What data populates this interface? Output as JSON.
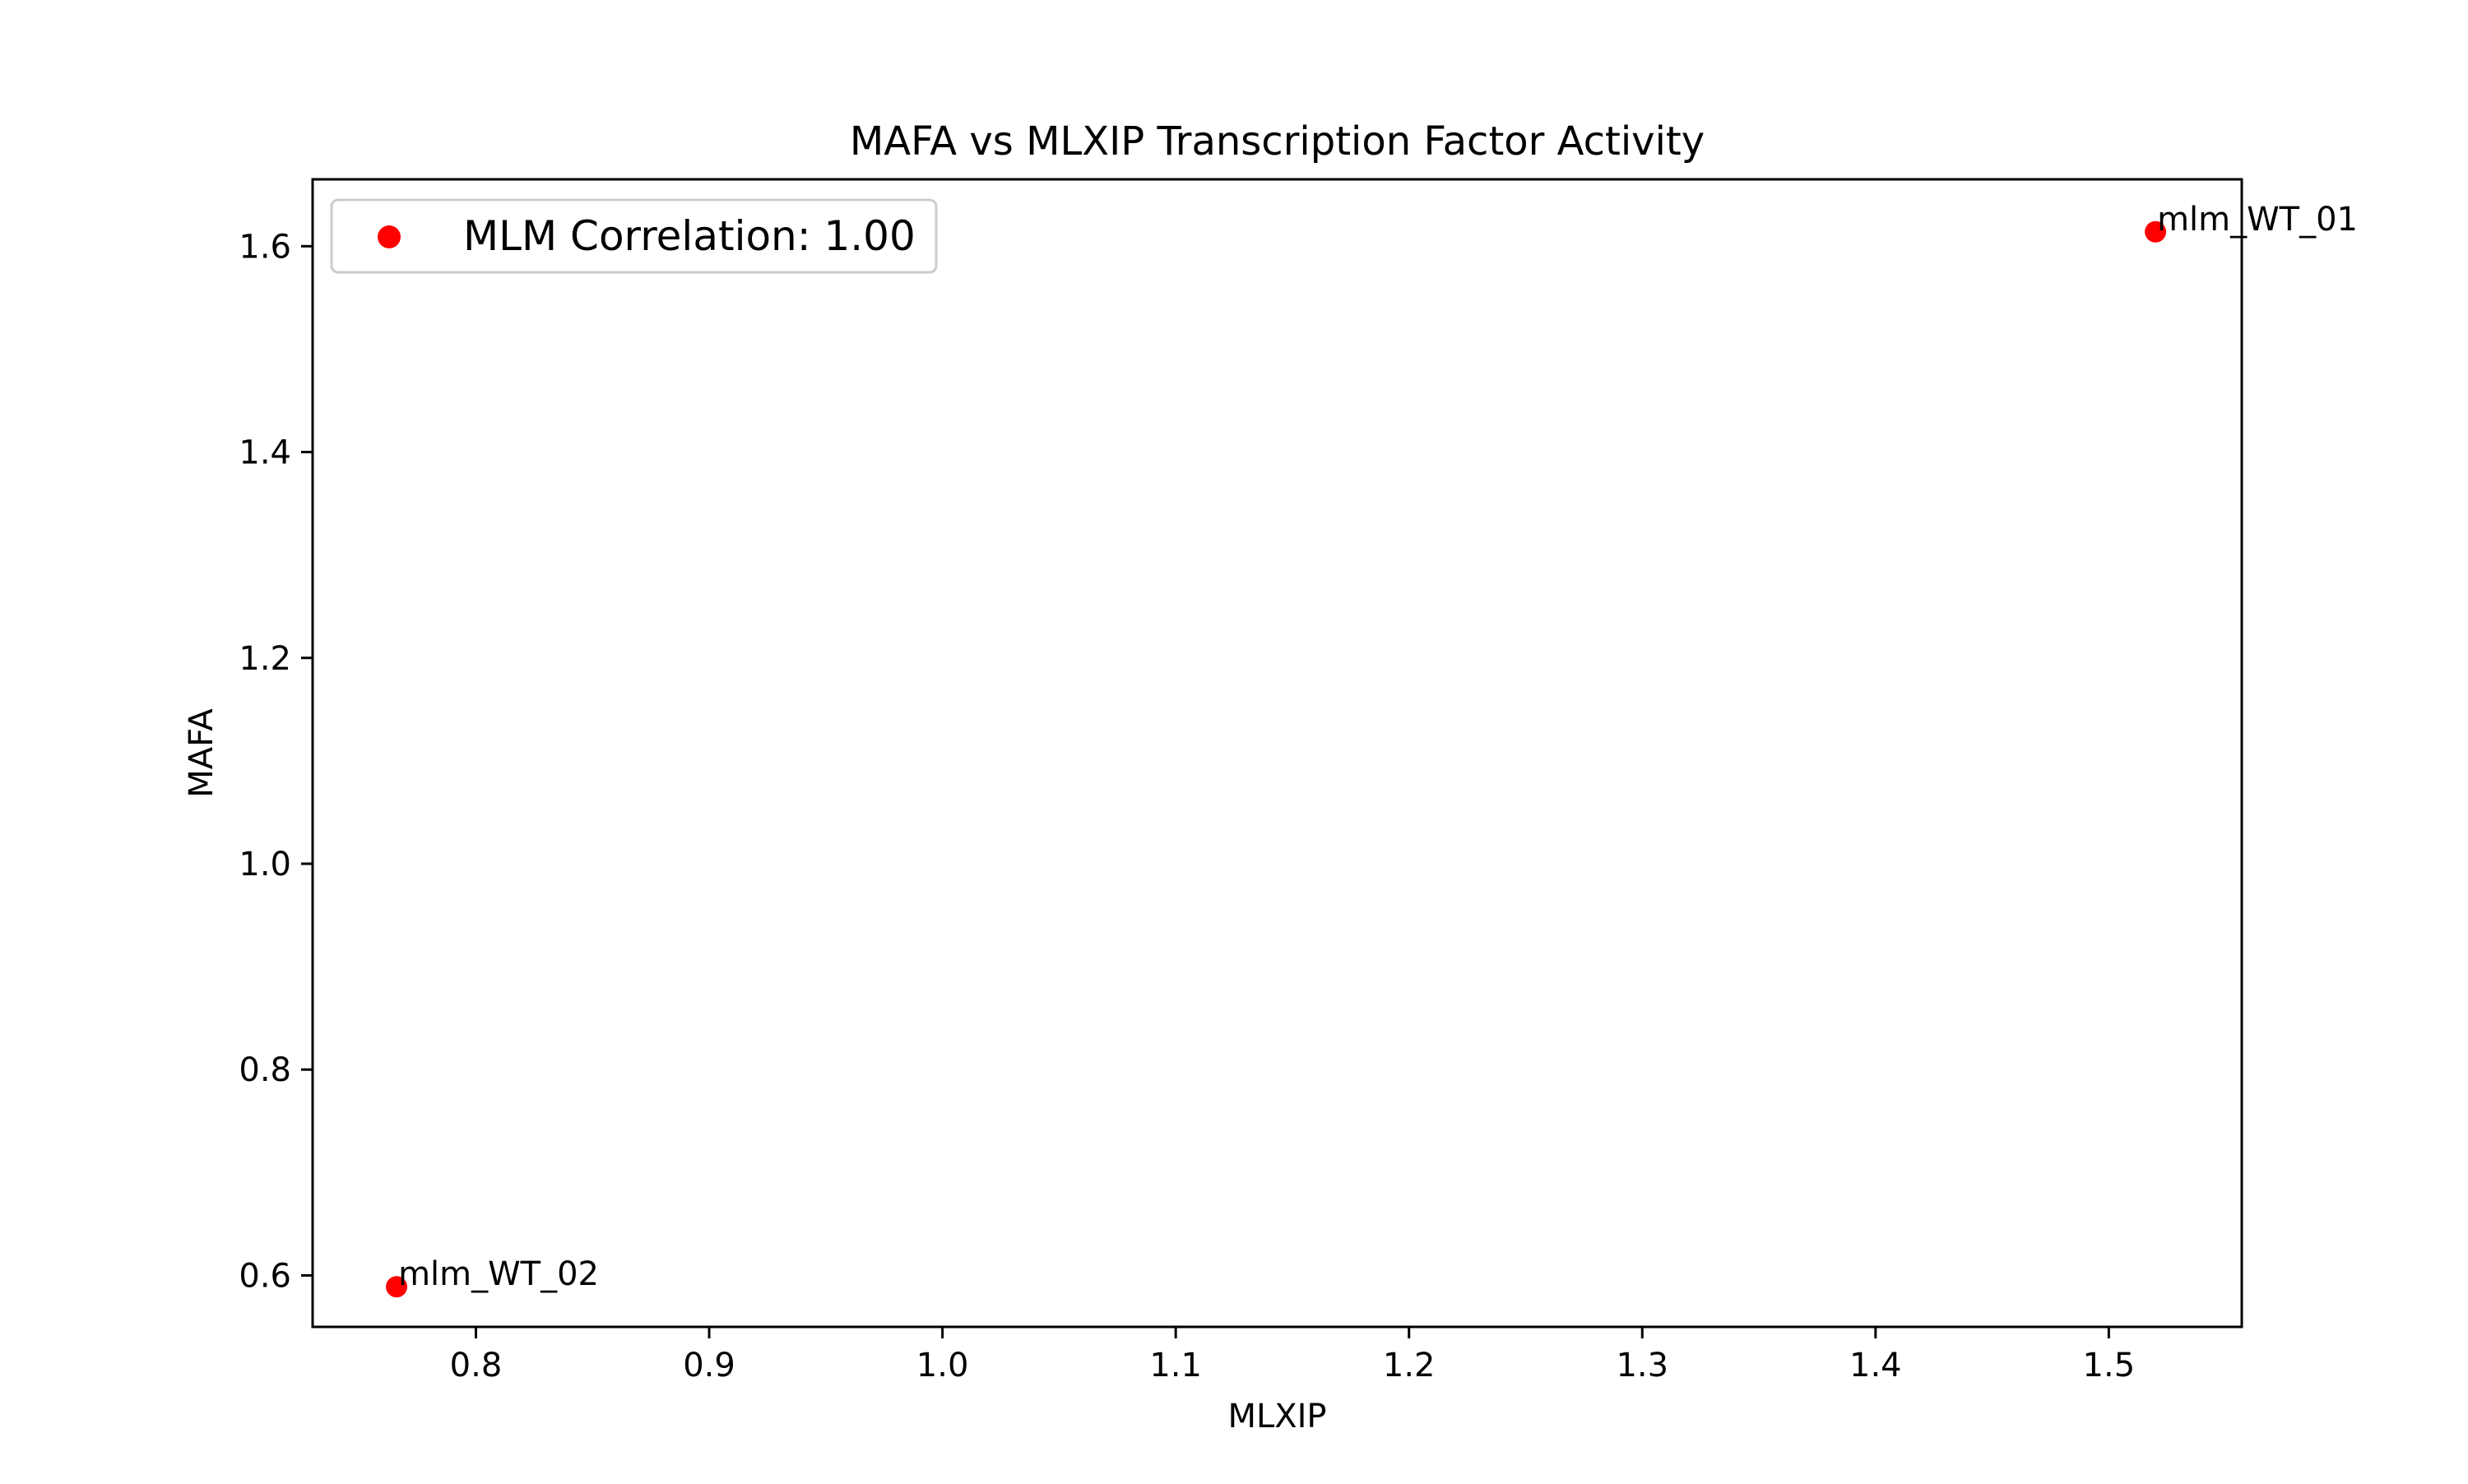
{
  "chart_data": {
    "type": "scatter",
    "title": "MAFA vs MLXIP Transcription Factor Activity",
    "xlabel": "MLXIP",
    "ylabel": "MAFA",
    "xlim": [
      0.73,
      1.557
    ],
    "ylim": [
      0.55,
      1.665
    ],
    "xticks": [
      0.8,
      0.9,
      1.0,
      1.1,
      1.2,
      1.3,
      1.4,
      1.5
    ],
    "yticks": [
      0.6,
      0.8,
      1.0,
      1.2,
      1.4,
      1.6
    ],
    "grid": false,
    "legend_position": "upper-left",
    "series": [
      {
        "name": "MLM Correlation: 1.00",
        "color": "#ff0000",
        "points": [
          {
            "x": 1.52,
            "y": 1.614,
            "label": "mlm_WT_01"
          },
          {
            "x": 0.766,
            "y": 0.589,
            "label": "mlm_WT_02"
          }
        ]
      }
    ]
  }
}
